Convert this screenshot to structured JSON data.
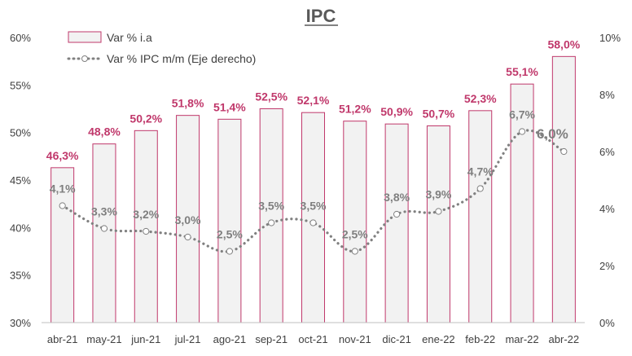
{
  "chart_data": {
    "type": "bar",
    "title": "IPC",
    "categories": [
      "abr-21",
      "may-21",
      "jun-21",
      "jul-21",
      "ago-21",
      "sep-21",
      "oct-21",
      "nov-21",
      "dic-21",
      "ene-22",
      "feb-22",
      "mar-22",
      "abr-22"
    ],
    "series": [
      {
        "name": "Var % i.a",
        "type": "bar",
        "axis": "left",
        "values": [
          46.3,
          48.8,
          50.2,
          51.8,
          51.4,
          52.5,
          52.1,
          51.2,
          50.9,
          50.7,
          52.3,
          55.1,
          58.0
        ],
        "labels": [
          "46,3%",
          "48,8%",
          "50,2%",
          "51,8%",
          "51,4%",
          "52,5%",
          "52,1%",
          "51,2%",
          "50,9%",
          "50,7%",
          "52,3%",
          "55,1%",
          "58,0%"
        ],
        "color": "#c0386b",
        "fill": "#f2f2f2"
      },
      {
        "name": "Var % IPC m/m (Eje derecho)",
        "type": "line",
        "axis": "right",
        "values": [
          4.1,
          3.3,
          3.2,
          3.0,
          2.5,
          3.5,
          3.5,
          2.5,
          3.8,
          3.9,
          4.7,
          6.7,
          6.0
        ],
        "labels": [
          "4,1%",
          "3,3%",
          "3,2%",
          "3,0%",
          "2,5%",
          "3,5%",
          "3,5%",
          "2,5%",
          "3,8%",
          "3,9%",
          "4,7%",
          "6,7%",
          "6,0%"
        ],
        "color": "#808080",
        "style": "dotted"
      }
    ],
    "y_left": {
      "ylim": [
        30,
        60
      ],
      "ticks": [
        "30%",
        "35%",
        "40%",
        "45%",
        "50%",
        "55%",
        "60%"
      ]
    },
    "y_right": {
      "ylim": [
        0,
        10
      ],
      "ticks": [
        "0%",
        "2%",
        "4%",
        "6%",
        "8%",
        "10%"
      ]
    },
    "legend_position": "top-left",
    "grid": false
  }
}
